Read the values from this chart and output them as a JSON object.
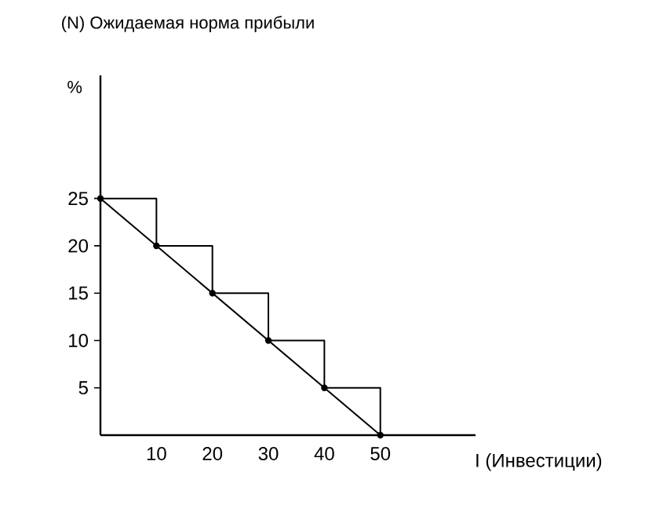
{
  "chart_data": {
    "type": "line",
    "title": "(N) Ожидаемая норма прибыли",
    "xlabel": "I (Инвестиции)",
    "ylabel": "%",
    "xlim": [
      0,
      67
    ],
    "ylim": [
      0,
      38
    ],
    "xticks": [
      10,
      20,
      30,
      40,
      50
    ],
    "yticks": [
      5,
      10,
      15,
      20,
      25
    ],
    "grid": false,
    "series": [
      {
        "type": "step",
        "color": "#000000",
        "marker": "circle",
        "x": [
          0,
          10,
          20,
          30,
          40,
          50
        ],
        "values": [
          25,
          20,
          15,
          10,
          5,
          0
        ]
      },
      {
        "color": "#000000",
        "marker": "none",
        "x": [
          0,
          50
        ],
        "values": [
          25,
          0
        ]
      }
    ]
  }
}
